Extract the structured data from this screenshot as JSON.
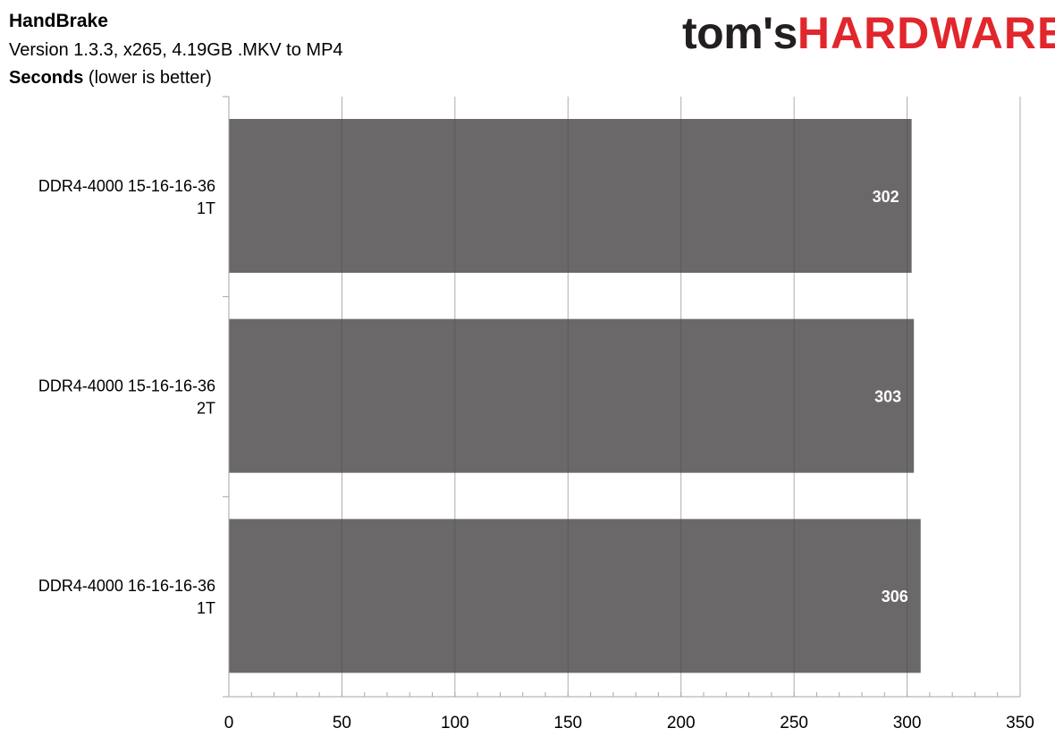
{
  "header": {
    "title": "HandBrake",
    "subtitle": "Version 1.3.3, x265, 4.19GB .MKV to MP4",
    "unit_bold": "Seconds",
    "unit_rest": "(lower is better)"
  },
  "logo": {
    "part1": "tom's",
    "part2": "HARDWARE",
    "color1": "#231f20",
    "color2": "#e1262c"
  },
  "chart_data": {
    "type": "bar",
    "orientation": "horizontal",
    "categories": [
      [
        "DDR4-4000 15-16-16-36",
        "1T"
      ],
      [
        "DDR4-4000 15-16-16-36",
        "2T"
      ],
      [
        "DDR4-4000 16-16-16-36",
        "1T"
      ]
    ],
    "values": [
      302,
      303,
      306
    ],
    "xlim": [
      0,
      350
    ],
    "xticks": [
      "0",
      "50",
      "100",
      "150",
      "200",
      "250",
      "300",
      "350"
    ],
    "grid": true,
    "bar_color": "#6b6869",
    "label_color": "#ffffff"
  }
}
